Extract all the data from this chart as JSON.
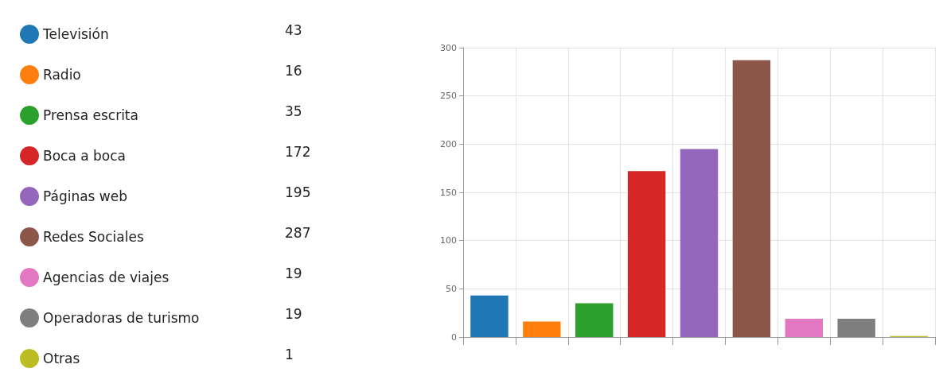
{
  "chart_data": {
    "type": "bar",
    "categories": [
      null,
      null,
      null,
      null,
      null,
      null,
      null,
      null,
      null
    ],
    "series": [
      {
        "name": "Televisión",
        "color": "#1f77b4",
        "values": [
          43,
          null,
          null,
          null,
          null,
          null,
          null,
          null,
          null
        ]
      },
      {
        "name": "Radio",
        "color": "#ff7f0e",
        "values": [
          null,
          16,
          null,
          null,
          null,
          null,
          null,
          null,
          null
        ]
      },
      {
        "name": "Prensa escrita",
        "color": "#2ca02c",
        "values": [
          null,
          null,
          35,
          null,
          null,
          null,
          null,
          null,
          null
        ]
      },
      {
        "name": "Boca a boca",
        "color": "#d62728",
        "values": [
          null,
          null,
          null,
          172,
          null,
          null,
          null,
          null,
          null
        ]
      },
      {
        "name": "Páginas web",
        "color": "#9467bd",
        "values": [
          null,
          null,
          null,
          null,
          195,
          null,
          null,
          null,
          null
        ]
      },
      {
        "name": "Redes Sociales",
        "color": "#8c564b",
        "values": [
          null,
          null,
          null,
          null,
          null,
          287,
          null,
          null,
          null
        ]
      },
      {
        "name": "Agencias de viajes",
        "color": "#e377c2",
        "values": [
          null,
          null,
          null,
          null,
          null,
          null,
          19,
          null,
          null
        ]
      },
      {
        "name": "Operadoras de turismo",
        "color": "#7f7f7f",
        "values": [
          null,
          null,
          null,
          null,
          null,
          null,
          null,
          19,
          null
        ]
      },
      {
        "name": "Otras",
        "color": "#bcbd22",
        "values": [
          null,
          null,
          null,
          null,
          null,
          null,
          null,
          null,
          1
        ]
      }
    ],
    "annotations": [
      "43",
      "16",
      "35",
      "172",
      "195",
      "287",
      "19",
      "19",
      "1"
    ],
    "ylim": [
      0,
      300
    ],
    "yticks": [
      0,
      50,
      100,
      150,
      200,
      250,
      300
    ],
    "grid": true,
    "legend": "left",
    "tick_labels": "y"
  }
}
